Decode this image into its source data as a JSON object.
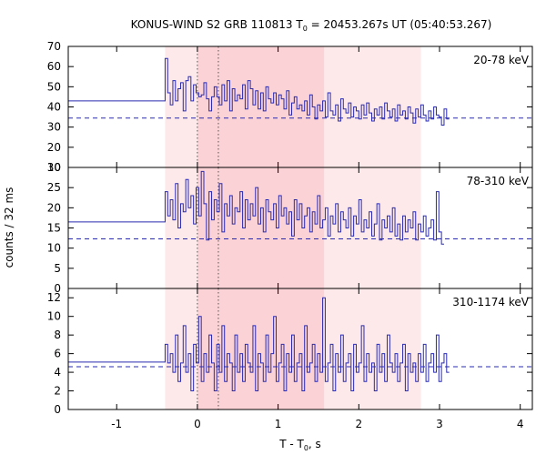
{
  "chart_data": {
    "type": "line",
    "title": "KONUS-WIND S2 GRB 110813 T",
    "title_sub": "0",
    "title_rest": " = 20453.267s UT (05:40:53.267)",
    "xlabel": "T - T",
    "xlabel_sub": "0",
    "xlabel_rest": ", s",
    "ylabel": "counts / 32 ms",
    "xlim": [
      -1.6,
      4.15
    ],
    "x_ticks": [
      -1,
      0,
      1,
      2,
      3,
      4
    ],
    "x_tick_labels": [
      "-1",
      "0",
      "1",
      "2",
      "3",
      "4"
    ],
    "shaded_intervals": [
      {
        "from": -0.4,
        "to": 2.77,
        "color": "#fde9e9"
      },
      {
        "from": 0.0,
        "to": 1.57,
        "color": "#fbd3d7"
      }
    ],
    "vertical_markers": [
      0.0,
      0.26
    ],
    "panels": [
      {
        "label": "20-78 keV",
        "ylim": [
          10,
          70
        ],
        "y_ticks": [
          10,
          20,
          30,
          40,
          50,
          60,
          70
        ],
        "y_tick_labels": [
          "10",
          "20",
          "30",
          "40",
          "50",
          "60",
          "70"
        ],
        "background_level": 34.5,
        "pre_burst_level": 43,
        "values": [
          64,
          47,
          41,
          53,
          43,
          49,
          52,
          38,
          53,
          55,
          43,
          51,
          47,
          45,
          46,
          52,
          44,
          38,
          45,
          50,
          45,
          41,
          51,
          43,
          53,
          38,
          49,
          43,
          46,
          44,
          51,
          39,
          53,
          49,
          41,
          48,
          39,
          47,
          38,
          50,
          44,
          42,
          47,
          41,
          46,
          44,
          39,
          48,
          36,
          42,
          45,
          39,
          41,
          38,
          43,
          36,
          46,
          40,
          34,
          41,
          38,
          43,
          35,
          47,
          38,
          36,
          41,
          33,
          44,
          39,
          37,
          42,
          35,
          40,
          38,
          34,
          41,
          36,
          42,
          37,
          33,
          39,
          36,
          40,
          34,
          42,
          38,
          35,
          39,
          33,
          41,
          36,
          38,
          34,
          40,
          37,
          32,
          39,
          35,
          41,
          36,
          33,
          38,
          34,
          40,
          36,
          35,
          31,
          39,
          34
        ]
      },
      {
        "label": "78-310 keV",
        "ylim": [
          0,
          30
        ],
        "y_ticks": [
          0,
          5,
          10,
          15,
          20,
          25,
          30
        ],
        "y_tick_labels": [
          "0",
          "5",
          "10",
          "15",
          "20",
          "25",
          "30"
        ],
        "background_level": 12.3,
        "pre_burst_level": 16.5,
        "values": [
          24,
          18,
          22,
          17,
          26,
          15,
          21,
          19,
          27,
          20,
          23,
          16,
          25,
          18,
          29,
          21,
          12,
          24,
          17,
          22,
          19,
          26,
          14,
          21,
          18,
          23,
          16,
          20,
          19,
          24,
          15,
          22,
          17,
          21,
          18,
          25,
          16,
          20,
          14,
          22,
          19,
          17,
          21,
          15,
          23,
          18,
          20,
          16,
          19,
          13,
          22,
          17,
          21,
          15,
          18,
          20,
          14,
          19,
          16,
          23,
          15,
          17,
          20,
          13,
          18,
          16,
          21,
          14,
          19,
          17,
          15,
          20,
          13,
          18,
          16,
          22,
          14,
          17,
          15,
          19,
          13,
          16,
          21,
          12,
          17,
          15,
          18,
          14,
          20,
          13,
          16,
          12,
          18,
          14,
          17,
          15,
          19,
          12,
          16,
          14,
          18,
          13,
          15,
          17,
          12,
          24,
          14,
          11
        ]
      },
      {
        "label": "310-1174 keV",
        "ylim": [
          0,
          13
        ],
        "y_ticks": [
          0,
          2,
          4,
          6,
          8,
          10,
          12
        ],
        "y_tick_labels": [
          "0",
          "2",
          "4",
          "6",
          "8",
          "10",
          "12"
        ],
        "background_level": 4.6,
        "pre_burst_level": 5.1,
        "values": [
          7,
          5,
          6,
          4,
          8,
          3,
          5,
          9,
          4,
          6,
          2,
          7,
          5,
          10,
          3,
          6,
          4,
          8,
          5,
          2,
          7,
          4,
          9,
          3,
          6,
          5,
          2,
          8,
          4,
          6,
          3,
          7,
          5,
          4,
          9,
          2,
          6,
          5,
          3,
          8,
          4,
          6,
          10,
          3,
          5,
          7,
          2,
          6,
          4,
          8,
          3,
          5,
          6,
          2,
          9,
          4,
          5,
          7,
          3,
          6,
          4,
          12,
          3,
          5,
          7,
          2,
          6,
          4,
          8,
          3,
          5,
          6,
          2,
          7,
          4,
          5,
          9,
          3,
          6,
          4,
          5,
          2,
          7,
          4,
          6,
          3,
          8,
          5,
          4,
          6,
          3,
          5,
          7,
          2,
          6,
          4,
          5,
          3,
          6,
          4,
          7,
          3,
          5,
          6,
          4,
          8,
          3,
          5,
          6,
          4
        ]
      }
    ]
  }
}
